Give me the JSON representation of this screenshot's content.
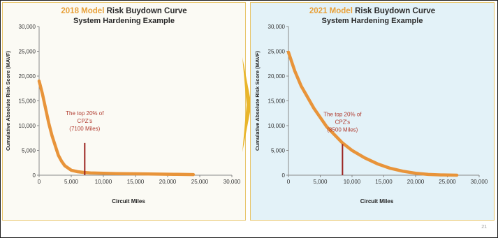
{
  "slide": {
    "page_number": "21"
  },
  "panels": [
    {
      "title_year": "2018 Model",
      "title_rest": " Risk Buydown Curve",
      "subtitle": "System Hardening  Example"
    },
    {
      "title_year": "2021 Model",
      "title_rest": " Risk Buydown Curve",
      "subtitle": "System Hardening  Example"
    }
  ],
  "colors": {
    "curve": "#e8943a",
    "marker": "#9b2320",
    "annotation": "#b03a2e",
    "title_year": "#e8a13a",
    "panel_border": "#e8c56a",
    "arrow": "#e9b52a"
  },
  "chart_data": [
    {
      "type": "line",
      "xlabel": "Circuit Miles",
      "ylabel": "Cumulative Absolute Risk Score (MAVF)",
      "xlim": [
        0,
        30000
      ],
      "ylim": [
        0,
        30000
      ],
      "xticks": [
        "0",
        "5,000",
        "10,000",
        "15,000",
        "20,000",
        "25,000",
        "30,000"
      ],
      "yticks": [
        "0",
        "5,000",
        "10,000",
        "15,000",
        "20,000",
        "25,000",
        "30,000"
      ],
      "grid": false,
      "x": [
        0,
        500,
        1000,
        1500,
        2000,
        2500,
        3000,
        3500,
        4000,
        5000,
        6000,
        7000,
        8000,
        10000,
        12000,
        15000,
        18000,
        21000,
        24000
      ],
      "y": [
        19000,
        16500,
        13500,
        10500,
        8000,
        6000,
        4000,
        2800,
        1900,
        1000,
        700,
        550,
        450,
        380,
        330,
        280,
        230,
        180,
        130
      ],
      "marker_x": 7100,
      "marker_top_y": 6500,
      "annotation": [
        "The top 20% of",
        "CPZ's",
        "(7100 Miles)"
      ]
    },
    {
      "type": "line",
      "xlabel": "Circuit Miles",
      "ylabel": "Cumulative Absolute Risk Score (MAVF)",
      "xlim": [
        0,
        30000
      ],
      "ylim": [
        0,
        30000
      ],
      "xticks": [
        "0",
        "5,000",
        "10,000",
        "15,000",
        "20,000",
        "25,000",
        "30,000"
      ],
      "yticks": [
        "0",
        "5,000",
        "10,000",
        "15,000",
        "20,000",
        "25,000",
        "30,000"
      ],
      "grid": false,
      "x": [
        0,
        1000,
        2000,
        4000,
        6000,
        8500,
        10000,
        12000,
        14000,
        16000,
        18000,
        20000,
        22000,
        24000,
        26500
      ],
      "y": [
        24800,
        21000,
        18000,
        13500,
        9800,
        6500,
        5000,
        3500,
        2300,
        1400,
        800,
        400,
        150,
        50,
        0
      ],
      "marker_x": 8500,
      "marker_top_y": 6300,
      "annotation": [
        "The top 20% of",
        "CPZ's",
        "(8500 Miles)"
      ]
    }
  ]
}
